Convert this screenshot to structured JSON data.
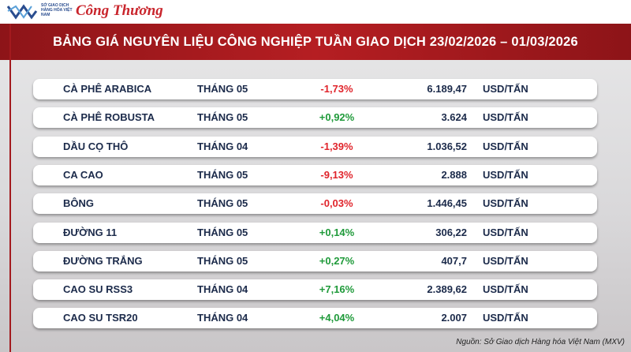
{
  "header": {
    "logo_text": "SỞ GIAO DỊCH HÀNG HÓA VIỆT NAM",
    "brand": "Công Thương"
  },
  "title": "BẢNG GIÁ NGUYÊN LIỆU CÔNG NGHIỆP TUẦN GIAO DỊCH 23/02/2026 – 01/03/2026",
  "table": {
    "rows": [
      [
        "CÀ PHÊ ARABICA",
        "THÁNG 05",
        "-1,73%",
        "6.189,47",
        "USD/TẤN"
      ],
      [
        "CÀ PHÊ ROBUSTA",
        "THÁNG 05",
        "+0,92%",
        "3.624",
        "USD/TẤN"
      ],
      [
        "DẦU CỌ THÔ",
        "THÁNG 04",
        "-1,39%",
        "1.036,52",
        "USD/TẤN"
      ],
      [
        "CA CAO",
        "THÁNG 05",
        "-9,13%",
        "2.888",
        "USD/TẤN"
      ],
      [
        "BÔNG",
        "THÁNG 05",
        "-0,03%",
        "1.446,45",
        "USD/TẤN"
      ],
      [
        "ĐƯỜNG 11",
        "THÁNG 05",
        "+0,14%",
        "306,22",
        "USD/TẤN"
      ],
      [
        "ĐƯỜNG TRẮNG",
        "THÁNG 05",
        "+0,27%",
        "407,7",
        "USD/TẤN"
      ],
      [
        "CAO SU RSS3",
        "THÁNG 04",
        "+7,16%",
        "2.389,62",
        "USD/TẤN"
      ],
      [
        "CAO SU TSR20",
        "THÁNG 04",
        "+4,04%",
        "2.007",
        "USD/TẤN"
      ]
    ]
  },
  "source": "Nguồn: Sở Giao dịch Hàng hóa Việt Nam (MXV)"
}
